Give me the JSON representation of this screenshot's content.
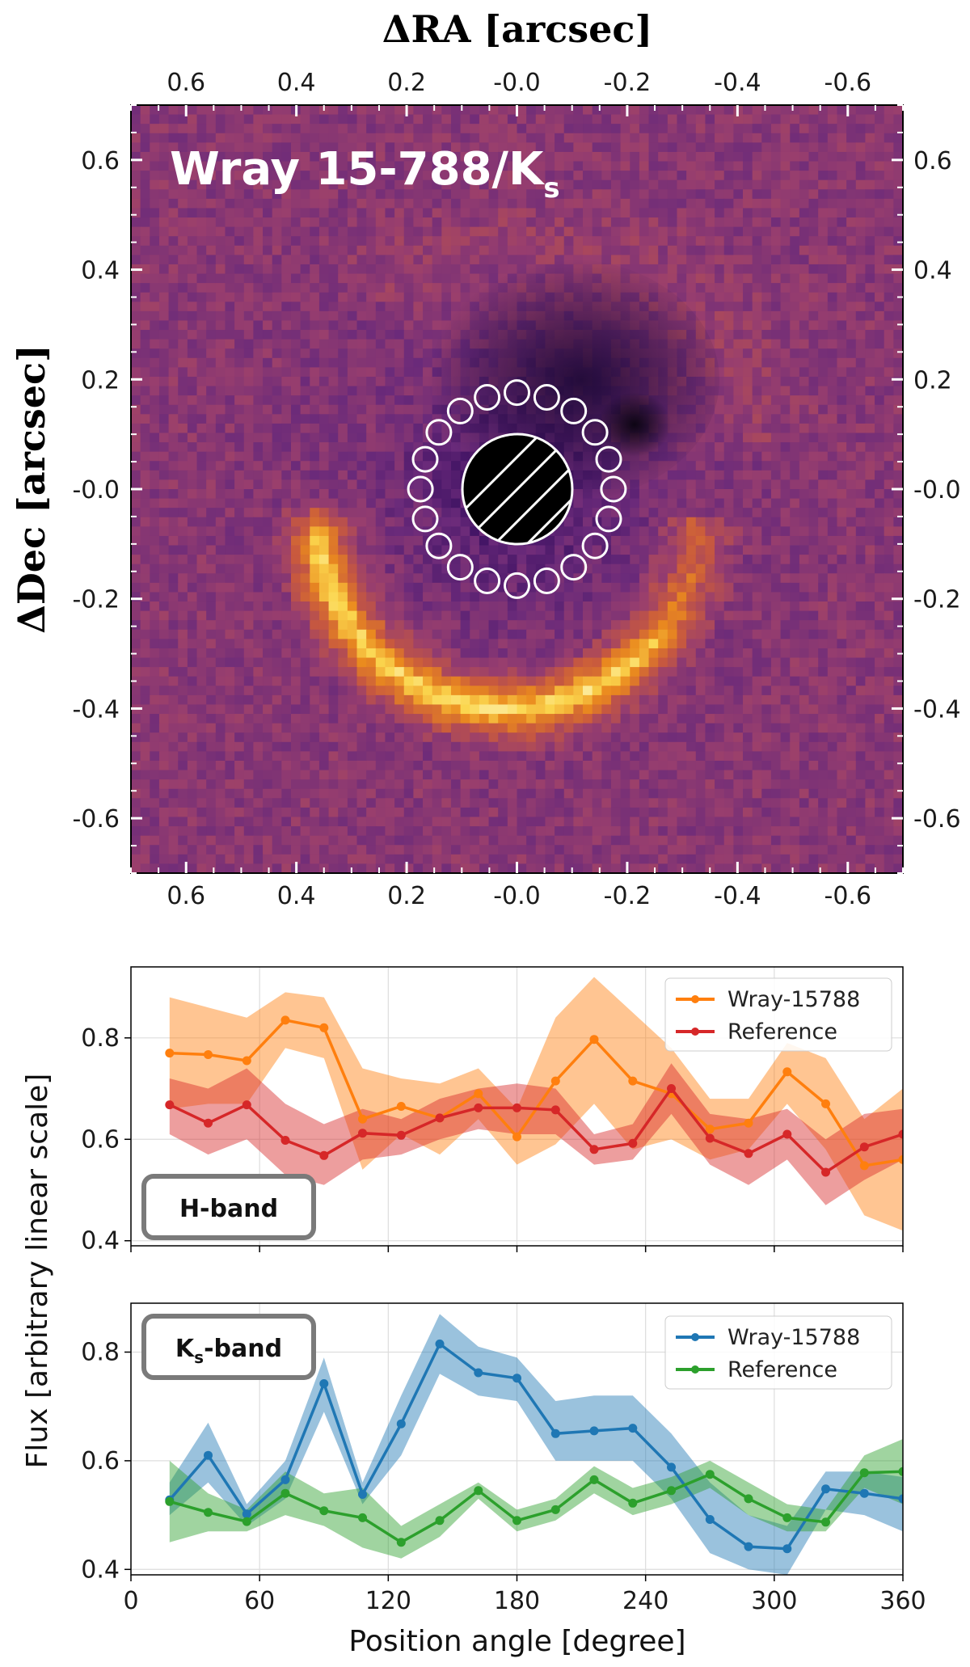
{
  "image_panel": {
    "title_main": "Wray 15-788/K",
    "title_sub": "s",
    "x_axis_title": "ΔRA [arcsec]",
    "y_axis_title": "ΔDec [arcsec]",
    "x_ticks": [
      "0.6",
      "0.4",
      "0.2",
      "-0.0",
      "-0.2",
      "-0.4",
      "-0.6"
    ],
    "x_tick_values": [
      0.6,
      0.4,
      0.2,
      0.0,
      -0.2,
      -0.4,
      -0.6
    ],
    "y_ticks": [
      "0.6",
      "0.4",
      "0.2",
      "-0.0",
      "-0.2",
      "-0.4",
      "-0.6"
    ],
    "y_tick_values": [
      0.6,
      0.4,
      0.2,
      0.0,
      -0.2,
      -0.4,
      -0.6
    ],
    "xlim": [
      0.7,
      -0.7
    ],
    "ylim": [
      -0.7,
      0.7
    ],
    "colormap": [
      "#12071e",
      "#3b1061",
      "#6a2a7a",
      "#983e6e",
      "#c8593e",
      "#ea8a1e",
      "#fbd64e",
      "#fdf7c5"
    ],
    "coronagraph_radius_arcsec": 0.1,
    "aperture_count": 20,
    "aperture_ring_radius_arcsec": 0.175
  },
  "chart_data": [
    {
      "type": "line",
      "panel": "H-band",
      "band_label": "H-band",
      "band_sub": "",
      "x": [
        18,
        36,
        54,
        72,
        90,
        108,
        126,
        144,
        162,
        180,
        198,
        216,
        234,
        252,
        270,
        288,
        306,
        324,
        342,
        360
      ],
      "xlim": [
        0,
        360
      ],
      "ylim": [
        0.39,
        0.94
      ],
      "yticks": [
        0.4,
        0.6,
        0.8
      ],
      "ytick_labels": [
        "0.4",
        "0.6",
        "0.8"
      ],
      "grid": true,
      "legend": "top-right",
      "series": [
        {
          "name": "Wray-15788",
          "color": "#ff7f0e",
          "values": [
            0.77,
            0.767,
            0.755,
            0.835,
            0.82,
            0.64,
            0.665,
            0.642,
            0.69,
            0.605,
            0.715,
            0.797,
            0.715,
            0.69,
            0.62,
            0.632,
            0.733,
            0.67,
            0.548,
            0.56
          ],
          "upper": [
            0.88,
            0.86,
            0.84,
            0.89,
            0.88,
            0.74,
            0.72,
            0.71,
            0.74,
            0.66,
            0.84,
            0.92,
            0.85,
            0.78,
            0.68,
            0.68,
            0.79,
            0.76,
            0.64,
            0.7
          ],
          "lower": [
            0.66,
            0.67,
            0.67,
            0.78,
            0.76,
            0.54,
            0.61,
            0.57,
            0.64,
            0.55,
            0.59,
            0.67,
            0.58,
            0.6,
            0.56,
            0.58,
            0.67,
            0.58,
            0.45,
            0.42
          ]
        },
        {
          "name": "Reference",
          "color": "#d62728",
          "values": [
            0.668,
            0.632,
            0.668,
            0.598,
            0.568,
            0.612,
            0.608,
            0.642,
            0.662,
            0.662,
            0.658,
            0.58,
            0.592,
            0.7,
            0.602,
            0.572,
            0.61,
            0.535,
            0.585,
            0.61
          ],
          "upper": [
            0.72,
            0.7,
            0.74,
            0.67,
            0.63,
            0.66,
            0.64,
            0.68,
            0.7,
            0.71,
            0.7,
            0.61,
            0.63,
            0.75,
            0.65,
            0.64,
            0.66,
            0.6,
            0.65,
            0.66
          ],
          "lower": [
            0.61,
            0.57,
            0.6,
            0.53,
            0.51,
            0.56,
            0.57,
            0.6,
            0.62,
            0.61,
            0.61,
            0.55,
            0.56,
            0.65,
            0.55,
            0.51,
            0.56,
            0.47,
            0.52,
            0.56
          ]
        }
      ]
    },
    {
      "type": "line",
      "panel": "Ks-band",
      "band_label": "K",
      "band_sub": "s",
      "band_suffix": "-band",
      "x": [
        18,
        36,
        54,
        72,
        90,
        108,
        126,
        144,
        162,
        180,
        198,
        216,
        234,
        252,
        270,
        288,
        306,
        324,
        342,
        360
      ],
      "xlim": [
        0,
        360
      ],
      "ylim": [
        0.39,
        0.89
      ],
      "yticks": [
        0.4,
        0.6,
        0.8
      ],
      "ytick_labels": [
        "0.4",
        "0.6",
        "0.8"
      ],
      "xticks": [
        0,
        60,
        120,
        180,
        240,
        300,
        360
      ],
      "xtick_labels": [
        "0",
        "60",
        "120",
        "180",
        "240",
        "300",
        "360"
      ],
      "grid": true,
      "legend": "top-right",
      "series": [
        {
          "name": "Wray-15788",
          "color": "#1f77b4",
          "values": [
            0.528,
            0.61,
            0.502,
            0.565,
            0.742,
            0.538,
            0.668,
            0.815,
            0.762,
            0.752,
            0.65,
            0.655,
            0.66,
            0.588,
            0.492,
            0.442,
            0.438,
            0.548,
            0.54,
            0.53
          ],
          "upper": [
            0.56,
            0.67,
            0.52,
            0.6,
            0.79,
            0.56,
            0.72,
            0.87,
            0.81,
            0.79,
            0.71,
            0.72,
            0.72,
            0.65,
            0.56,
            0.5,
            0.48,
            0.58,
            0.58,
            0.57
          ],
          "lower": [
            0.5,
            0.56,
            0.48,
            0.53,
            0.69,
            0.52,
            0.61,
            0.76,
            0.72,
            0.71,
            0.6,
            0.6,
            0.6,
            0.53,
            0.43,
            0.4,
            0.39,
            0.51,
            0.5,
            0.47
          ]
        },
        {
          "name": "Reference",
          "color": "#2ca02c",
          "values": [
            0.525,
            0.505,
            0.488,
            0.54,
            0.508,
            0.495,
            0.45,
            0.49,
            0.545,
            0.49,
            0.51,
            0.565,
            0.522,
            0.545,
            0.575,
            0.53,
            0.495,
            0.487,
            0.578,
            0.58
          ],
          "upper": [
            0.6,
            0.54,
            0.51,
            0.58,
            0.54,
            0.55,
            0.48,
            0.52,
            0.56,
            0.51,
            0.53,
            0.59,
            0.55,
            0.57,
            0.6,
            0.56,
            0.52,
            0.51,
            0.61,
            0.64
          ],
          "lower": [
            0.45,
            0.47,
            0.47,
            0.5,
            0.48,
            0.44,
            0.42,
            0.46,
            0.53,
            0.47,
            0.49,
            0.54,
            0.5,
            0.52,
            0.55,
            0.5,
            0.47,
            0.47,
            0.55,
            0.52
          ]
        }
      ]
    }
  ],
  "shared": {
    "ylabel": "Flux [arbitrary linear scale]",
    "xlabel": "Position angle [degree]"
  }
}
